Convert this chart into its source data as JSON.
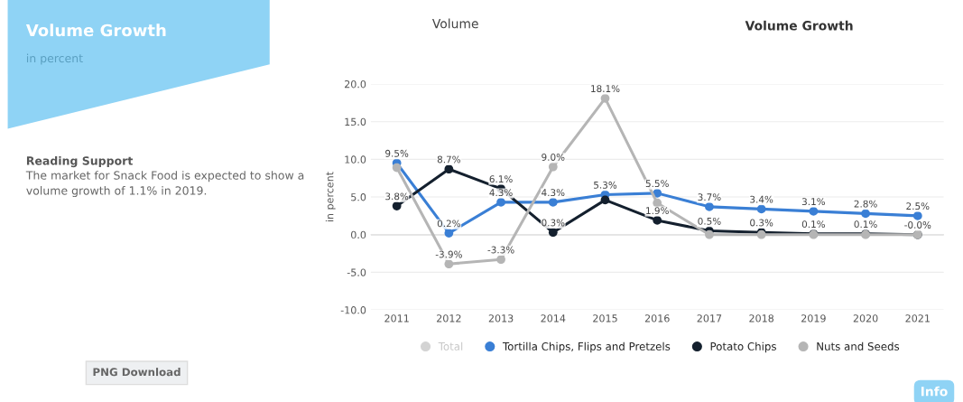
{
  "chart_data": {
    "type": "line",
    "title": "Volume Growth",
    "subtitle": "in percent",
    "ylabel": "in percent",
    "categories": [
      "2011",
      "2012",
      "2013",
      "2014",
      "2015",
      "2016",
      "2017",
      "2018",
      "2019",
      "2020",
      "2021"
    ],
    "series": [
      {
        "name": "Total",
        "color": "#d3d3d3",
        "values": [
          null,
          null,
          null,
          null,
          null,
          null,
          null,
          null,
          null,
          null,
          null
        ]
      },
      {
        "name": "Tortilla Chips, Flips and Pretzels",
        "color": "#3a7fd5",
        "values": [
          9.5,
          0.2,
          4.3,
          4.3,
          5.3,
          5.5,
          3.7,
          3.4,
          3.1,
          2.8,
          2.5
        ],
        "value_labels": [
          "9.5%",
          "0.2%",
          "4.3%",
          "4.3%",
          "5.3%",
          "5.5%",
          "3.7%",
          "3.4%",
          "3.1%",
          "2.8%",
          "2.5%"
        ]
      },
      {
        "name": "Potato Chips",
        "color": "#14202e",
        "values": [
          3.8,
          8.7,
          6.1,
          0.3,
          4.6,
          1.9,
          0.5,
          0.3,
          0.1,
          0.1,
          0.0
        ],
        "value_labels": [
          "3.8%",
          "8.7%",
          "6.1%",
          "0.3%",
          null,
          "1.9%",
          "0.5%",
          "0.3%",
          "0.1%",
          "0.1%",
          "-0.0%"
        ]
      },
      {
        "name": "Nuts and Seeds",
        "color": "#b5b5b5",
        "values": [
          8.9,
          -3.9,
          -3.3,
          9.0,
          18.1,
          4.2,
          0.0,
          0.0,
          0.0,
          0.0,
          0.0
        ],
        "value_labels": [
          null,
          "-3.9%",
          "-3.3%",
          "9.0%",
          "18.1%",
          null,
          null,
          null,
          null,
          null,
          null
        ]
      }
    ],
    "ylim": [
      -10,
      20
    ],
    "yticks": [
      {
        "value": -10,
        "label": "-10.0"
      },
      {
        "value": -5,
        "label": "-5.0"
      },
      {
        "value": 0,
        "label": "0.0"
      },
      {
        "value": 5,
        "label": "5.0"
      },
      {
        "value": 10,
        "label": "10.0"
      },
      {
        "value": 15,
        "label": "15.0"
      },
      {
        "value": 20,
        "label": "20.0"
      }
    ],
    "grid": "y",
    "legend": "bottom",
    "marker": "circle",
    "line_style": "solid",
    "annotations": [
      "Volume",
      "Volume Growth",
      "Reading Support",
      "The market for Snack Food is expected to show a volume growth of 1.1% in 2019.",
      "PNG Download",
      "Info"
    ]
  }
}
